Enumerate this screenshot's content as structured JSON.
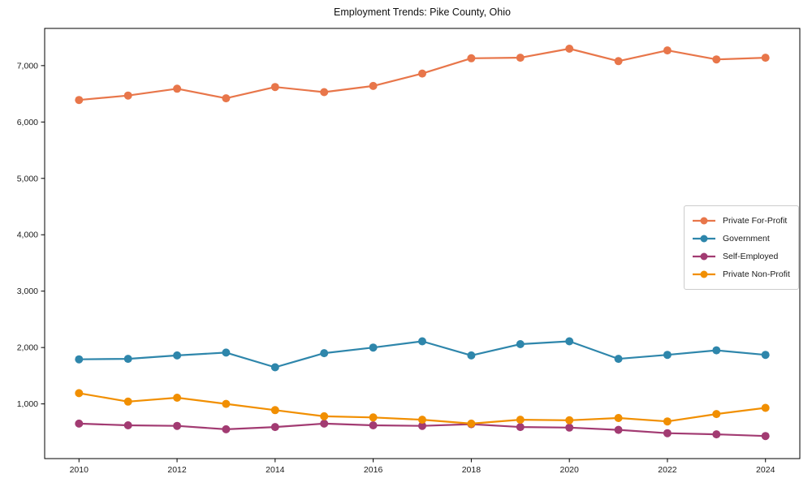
{
  "chart_data": {
    "type": "line",
    "title": "Employment Trends: Pike County, Ohio",
    "xlabel": "",
    "ylabel": "",
    "x": [
      2010,
      2011,
      2012,
      2013,
      2014,
      2015,
      2016,
      2017,
      2018,
      2019,
      2020,
      2021,
      2022,
      2023,
      2024
    ],
    "series": [
      {
        "name": "Private For-Profit",
        "color": "#e8764a",
        "values": [
          6390,
          6470,
          6590,
          6420,
          6620,
          6530,
          6640,
          6860,
          7130,
          7140,
          7300,
          7080,
          7270,
          7110,
          7140
        ]
      },
      {
        "name": "Government",
        "color": "#2e86ab",
        "values": [
          1790,
          1800,
          1860,
          1910,
          1650,
          1900,
          2000,
          2110,
          1860,
          2060,
          2110,
          1800,
          1870,
          1950,
          1870
        ]
      },
      {
        "name": "Self-Employed",
        "color": "#a23b72",
        "values": [
          650,
          620,
          610,
          550,
          590,
          650,
          620,
          610,
          640,
          590,
          580,
          540,
          480,
          460,
          430
        ]
      },
      {
        "name": "Private Non-Profit",
        "color": "#f18f01",
        "values": [
          1190,
          1040,
          1110,
          1000,
          890,
          780,
          760,
          720,
          650,
          720,
          710,
          750,
          690,
          820,
          930
        ]
      }
    ],
    "x_ticks": [
      2010,
      2012,
      2014,
      2016,
      2018,
      2020,
      2022,
      2024
    ],
    "y_ticks": [
      1000,
      2000,
      3000,
      4000,
      5000,
      6000,
      7000
    ],
    "xlim": [
      2009.3,
      2024.7
    ],
    "ylim": [
      30,
      7660
    ],
    "grid": false,
    "legend_position": "center-right",
    "marker": "circle",
    "axis_color": "#000000",
    "tick_label_color": "#1a1a1a"
  }
}
